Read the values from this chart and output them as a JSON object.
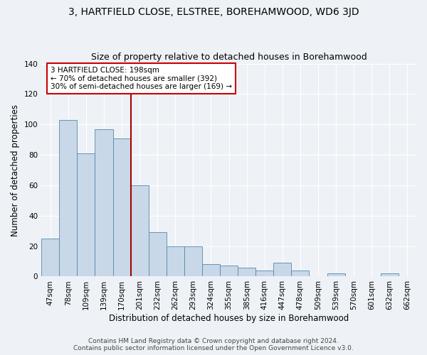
{
  "title": "3, HARTFIELD CLOSE, ELSTREE, BOREHAMWOOD, WD6 3JD",
  "subtitle": "Size of property relative to detached houses in Borehamwood",
  "xlabel": "Distribution of detached houses by size in Borehamwood",
  "ylabel": "Number of detached properties",
  "categories": [
    "47sqm",
    "78sqm",
    "109sqm",
    "139sqm",
    "170sqm",
    "201sqm",
    "232sqm",
    "262sqm",
    "293sqm",
    "324sqm",
    "355sqm",
    "385sqm",
    "416sqm",
    "447sqm",
    "478sqm",
    "509sqm",
    "539sqm",
    "570sqm",
    "601sqm",
    "632sqm",
    "662sqm"
  ],
  "values": [
    25,
    103,
    81,
    97,
    91,
    60,
    29,
    20,
    20,
    8,
    7,
    6,
    4,
    9,
    4,
    0,
    2,
    0,
    0,
    2,
    0
  ],
  "bar_color": "#c8d8e8",
  "bar_edge_color": "#5588aa",
  "marker_line_color": "#aa0000",
  "annotation_box_text": "3 HARTFIELD CLOSE: 198sqm\n← 70% of detached houses are smaller (392)\n30% of semi-detached houses are larger (169) →",
  "annotation_box_color": "#ffffff",
  "annotation_box_edge_color": "#cc0000",
  "ylim": [
    0,
    140
  ],
  "yticks": [
    0,
    20,
    40,
    60,
    80,
    100,
    120,
    140
  ],
  "footer_line1": "Contains HM Land Registry data © Crown copyright and database right 2024.",
  "footer_line2": "Contains public sector information licensed under the Open Government Licence v3.0.",
  "background_color": "#eef2f7",
  "grid_color": "#ffffff",
  "title_fontsize": 10,
  "subtitle_fontsize": 9,
  "axis_label_fontsize": 8.5,
  "tick_fontsize": 7.5,
  "annotation_fontsize": 7.5,
  "footer_fontsize": 6.5
}
